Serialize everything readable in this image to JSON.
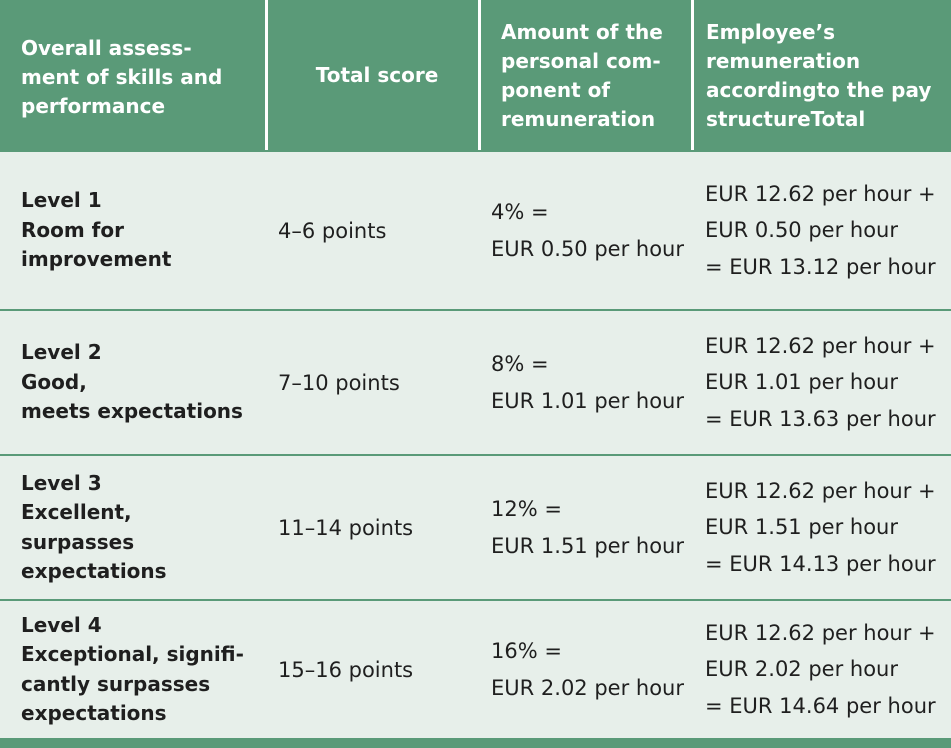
{
  "header": {
    "col1": [
      "Overall assess-",
      "ment of skills and",
      "performance"
    ],
    "col2": [
      "Total score"
    ],
    "col3": [
      "Amount of the",
      "personal com-",
      "ponent of",
      "remuneration"
    ],
    "col4": [
      "Employee’s",
      "remuneration",
      "accordingto the pay",
      "structureTotal"
    ]
  },
  "rows": [
    {
      "level": [
        "Level 1",
        "Room for",
        "improvement"
      ],
      "score": "4–6 points",
      "component": [
        "4% =",
        "EUR 0.50 per hour"
      ],
      "total": [
        "EUR 12.62 per hour +",
        "EUR 0.50 per hour",
        "= EUR 13.12 per hour"
      ]
    },
    {
      "level": [
        "Level 2",
        "Good,",
        "meets expectations"
      ],
      "score": "7–10 points",
      "component": [
        "8% =",
        "EUR 1.01 per hour"
      ],
      "total": [
        "EUR 12.62 per hour +",
        "EUR 1.01 per hour",
        "= EUR 13.63 per hour"
      ]
    },
    {
      "level": [
        "Level 3",
        "Excellent,",
        "surpasses",
        "expectations"
      ],
      "score": "11–14 points",
      "component": [
        "12% =",
        "EUR 1.51 per hour"
      ],
      "total": [
        "EUR 12.62 per hour +",
        "EUR 1.51 per hour",
        "= EUR 14.13 per hour"
      ]
    },
    {
      "level": [
        "Level 4",
        "Exceptional, signifi-",
        "cantly surpasses",
        "expectations"
      ],
      "score": "15–16 points",
      "component": [
        "16% =",
        "EUR 2.02 per hour"
      ],
      "total": [
        "EUR 12.62 per hour +",
        "EUR 2.02 per hour",
        "= EUR 14.64 per hour"
      ]
    }
  ],
  "colors": {
    "header_bg": "#5a9a78",
    "body_bg": "#e7efea",
    "divider": "#5a9a78"
  }
}
